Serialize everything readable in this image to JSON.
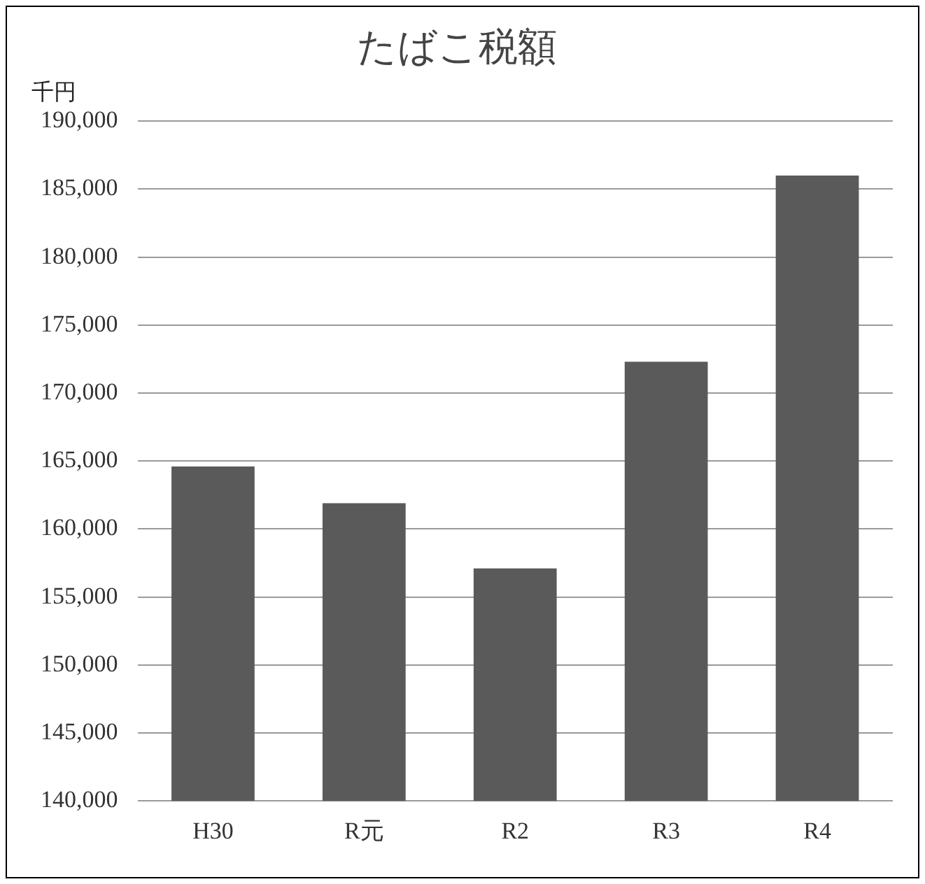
{
  "chart_data": {
    "type": "bar",
    "title": "たばこ税額",
    "ylabel": "千円",
    "categories": [
      "H30",
      "R元",
      "R2",
      "R3",
      "R4"
    ],
    "values": [
      164600,
      161900,
      157100,
      172300,
      186000
    ],
    "color": "#5a5a5a",
    "ylim": [
      140000,
      190000
    ],
    "yticks": [
      {
        "value": 140000,
        "label": "140,000"
      },
      {
        "value": 145000,
        "label": "145,000"
      },
      {
        "value": 150000,
        "label": "150,000"
      },
      {
        "value": 155000,
        "label": "155,000"
      },
      {
        "value": 160000,
        "label": "160,000"
      },
      {
        "value": 165000,
        "label": "165,000"
      },
      {
        "value": 170000,
        "label": "170,000"
      },
      {
        "value": 175000,
        "label": "175,000"
      },
      {
        "value": 180000,
        "label": "180,000"
      },
      {
        "value": 185000,
        "label": "185,000"
      },
      {
        "value": 190000,
        "label": "190,000"
      }
    ],
    "grid": "y"
  }
}
